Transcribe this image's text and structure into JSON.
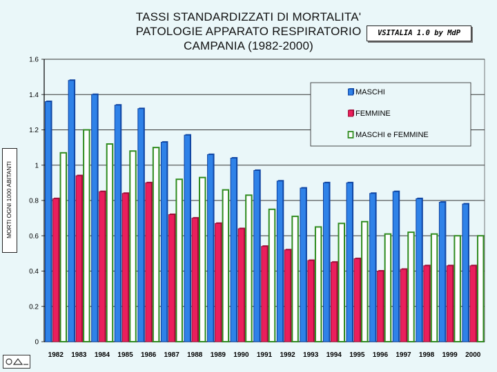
{
  "title_lines": [
    "TASSI STANDARDIZZATI DI MORTALITA'",
    "PATOLOGIE APPARATO RESPIRATORIO",
    "CAMPANIA (1982-2000)"
  ],
  "brand": "VSITALIA 1.0 by MdP",
  "colors": {
    "background": "#eaf7f9",
    "maschi": "#2f82e8",
    "femmine": "#ea1f5c",
    "maschi_femmine_fill": "#ffffff",
    "maschi_femmine_border": "#2e8b1e"
  },
  "chart_data": {
    "type": "bar",
    "title": "TASSI STANDARDIZZATI DI MORTALITA' PATOLOGIE APPARATO RESPIRATORIO CAMPANIA (1982-2000)",
    "xlabel": "",
    "ylabel": "MORTI OGNI 1000 ABITANTI",
    "ylim": [
      0,
      1.6
    ],
    "yticks": [
      "0",
      "0.2",
      "0.4",
      "0.6",
      "0.8",
      "1",
      "1.2",
      "1.4",
      "1.6"
    ],
    "grid": true,
    "legend_position": "top-right",
    "categories": [
      "1982",
      "1983",
      "1984",
      "1985",
      "1986",
      "1987",
      "1988",
      "1989",
      "1990",
      "1991",
      "1992",
      "1993",
      "1994",
      "1995",
      "1996",
      "1997",
      "1998",
      "1999",
      "2000"
    ],
    "series": [
      {
        "name": "MASCHI",
        "values": [
          1.36,
          1.48,
          1.4,
          1.34,
          1.32,
          1.13,
          1.17,
          1.06,
          1.04,
          0.97,
          0.91,
          0.87,
          0.9,
          0.9,
          0.84,
          0.85,
          0.81,
          0.79,
          0.78
        ]
      },
      {
        "name": "FEMMINE",
        "values": [
          0.81,
          0.94,
          0.85,
          0.84,
          0.9,
          0.72,
          0.7,
          0.67,
          0.64,
          0.54,
          0.52,
          0.46,
          0.45,
          0.47,
          0.4,
          0.41,
          0.43,
          0.43,
          0.43
        ]
      },
      {
        "name": "MASCHI e FEMMINE",
        "values": [
          1.07,
          1.2,
          1.12,
          1.08,
          1.1,
          0.92,
          0.93,
          0.86,
          0.83,
          0.75,
          0.71,
          0.65,
          0.67,
          0.68,
          0.61,
          0.62,
          0.61,
          0.6,
          0.6
        ]
      }
    ]
  }
}
